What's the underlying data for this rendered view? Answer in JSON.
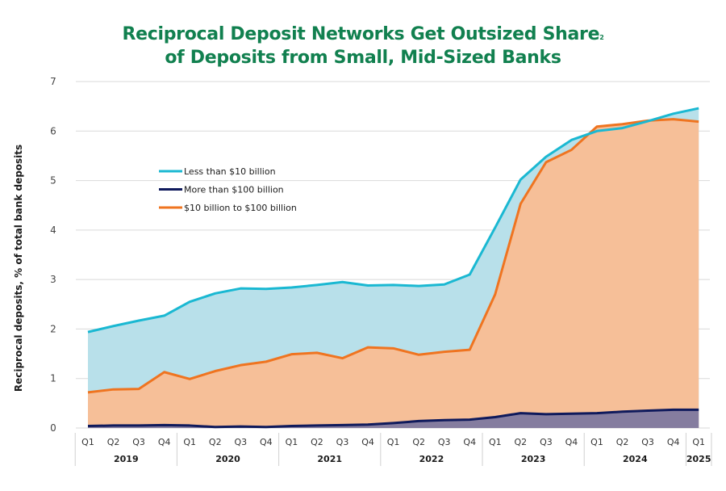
{
  "chart_data": {
    "type": "area",
    "title_line1": "Reciprocal Deposit Networks Get Outsized Share",
    "title_sup": "2",
    "title_line2": "of Deposits from Small, Mid-Sized Banks",
    "ylabel": "Reciprocal deposits, % of total bank deposits",
    "xlabel": "",
    "ylim": [
      0,
      7
    ],
    "yticks": [
      "0",
      "1",
      "2",
      "3",
      "4",
      "5",
      "6",
      "7"
    ],
    "grid": true,
    "legend_position": "upper-left",
    "quarters": [
      "Q1",
      "Q2",
      "Q3",
      "Q4",
      "Q1",
      "Q2",
      "Q3",
      "Q4",
      "Q1",
      "Q2",
      "Q3",
      "Q4",
      "Q1",
      "Q2",
      "Q3",
      "Q4",
      "Q1",
      "Q2",
      "Q3",
      "Q4",
      "Q1",
      "Q2",
      "Q3",
      "Q4",
      "Q1"
    ],
    "years": [
      {
        "label": "2019",
        "count": 4
      },
      {
        "label": "2020",
        "count": 4
      },
      {
        "label": "2021",
        "count": 4
      },
      {
        "label": "2022",
        "count": 4
      },
      {
        "label": "2023",
        "count": 4
      },
      {
        "label": "2024",
        "count": 4
      },
      {
        "label": "2025",
        "count": 1
      }
    ],
    "series": [
      {
        "name": "Less than $10 billion",
        "color": "#1ab8d2",
        "fill": "#b8e0ea",
        "values": [
          1.94,
          2.06,
          2.17,
          2.27,
          2.55,
          2.72,
          2.82,
          2.81,
          2.84,
          2.89,
          2.95,
          2.88,
          2.89,
          2.87,
          2.9,
          3.1,
          4.05,
          5.02,
          5.48,
          5.82,
          6.0,
          6.06,
          6.2,
          6.35,
          6.46
        ]
      },
      {
        "name": "More than $100 billion",
        "color": "#0f1a5c",
        "fill": "#857d9f",
        "values": [
          0.04,
          0.05,
          0.05,
          0.06,
          0.05,
          0.02,
          0.03,
          0.02,
          0.04,
          0.05,
          0.06,
          0.07,
          0.1,
          0.14,
          0.16,
          0.17,
          0.22,
          0.3,
          0.28,
          0.29,
          0.3,
          0.33,
          0.35,
          0.37,
          0.37
        ]
      },
      {
        "name": "$10 billion to $100 billion",
        "color": "#ef7420",
        "fill": "#f6bf98",
        "values": [
          0.72,
          0.78,
          0.79,
          1.13,
          0.99,
          1.15,
          1.27,
          1.34,
          1.49,
          1.52,
          1.41,
          1.63,
          1.61,
          1.48,
          1.54,
          1.58,
          2.7,
          4.53,
          5.37,
          5.62,
          6.09,
          6.14,
          6.21,
          6.24,
          6.19
        ]
      }
    ]
  }
}
